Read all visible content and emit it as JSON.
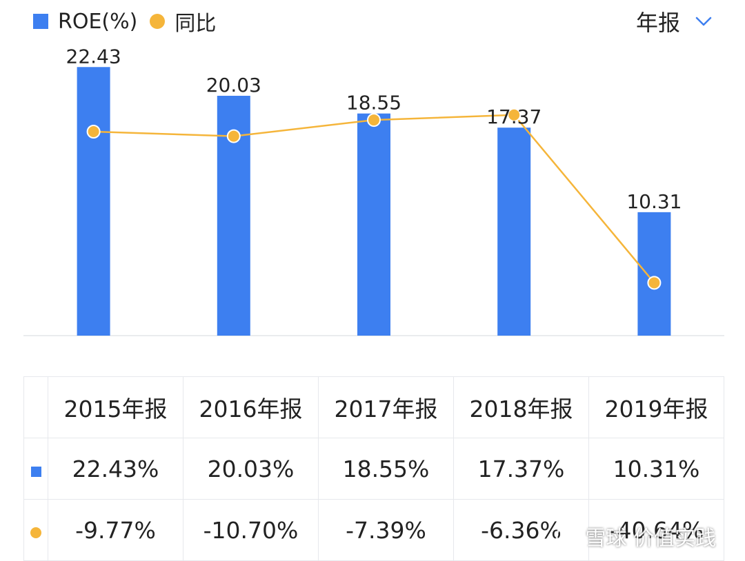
{
  "legend": {
    "roe_label": "ROE(%)",
    "yoy_label": "同比"
  },
  "period_selector": {
    "label": "年报",
    "icon": "chevron-down-icon"
  },
  "colors": {
    "bar": "#3d7ff0",
    "line": "#f5b53a",
    "axis": "#e3e5e8"
  },
  "chart_data": {
    "type": "bar",
    "categories": [
      "2015年报",
      "2016年报",
      "2017年报",
      "2018年报",
      "2019年报"
    ],
    "series": [
      {
        "name": "ROE(%)",
        "type": "bar",
        "values": [
          22.43,
          20.03,
          18.55,
          17.37,
          10.31
        ]
      },
      {
        "name": "同比",
        "type": "line",
        "values": [
          -9.77,
          -10.7,
          -7.39,
          -6.36,
          -40.64
        ]
      }
    ],
    "bar_labels": [
      "22.43",
      "20.03",
      "18.55",
      "17.37",
      "10.31"
    ],
    "legend_position": "top-left",
    "grid": false
  },
  "table": {
    "headers": [
      "2015年报",
      "2016年报",
      "2017年报",
      "2018年报",
      "2019年报"
    ],
    "roe_row": [
      "22.43%",
      "20.03%",
      "18.55%",
      "17.37%",
      "10.31%"
    ],
    "yoy_row": [
      "-9.77%",
      "-10.70%",
      "-7.39%",
      "-6.36%",
      "-40.64%"
    ]
  },
  "watermark": {
    "text": "雪球 价值实践"
  }
}
